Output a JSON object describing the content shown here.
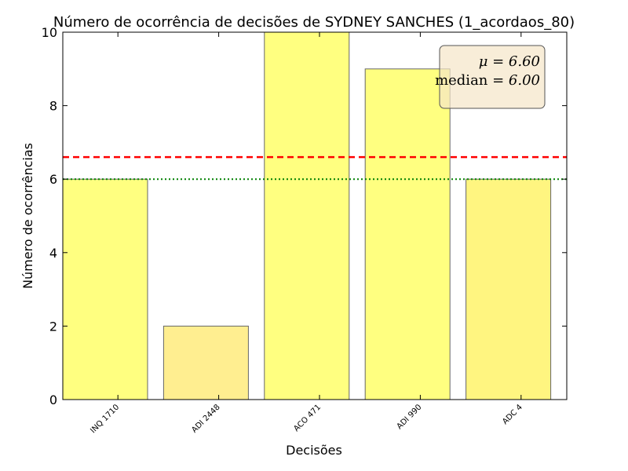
{
  "chart_data": {
    "type": "bar",
    "title": "Número de ocorrência de decisões de SYDNEY SANCHES (1_acordaos_80)",
    "xlabel": "Decisões",
    "ylabel": "Número de ocorrências",
    "categories": [
      "INQ 1710",
      "ADI 2448",
      "ACO 471",
      "ADI 990",
      "ADC 4"
    ],
    "values": [
      6,
      2,
      10,
      9,
      6
    ],
    "bar_colors": [
      "#ffff80",
      "#ffee90",
      "#ffff80",
      "#ffff80",
      "#fff580"
    ],
    "ylim": [
      0,
      10
    ],
    "yticks": [
      "0",
      "2",
      "4",
      "6",
      "8",
      "10"
    ],
    "mean": 6.6,
    "median": 6.0,
    "mean_line_color": "#ff0000",
    "median_line_color": "#008000",
    "stats_box": {
      "mean_symbol": "μ",
      "mean_text": "6.60",
      "median_label": "median",
      "median_text": "6.00",
      "placement": "top-right"
    },
    "grid": false
  }
}
